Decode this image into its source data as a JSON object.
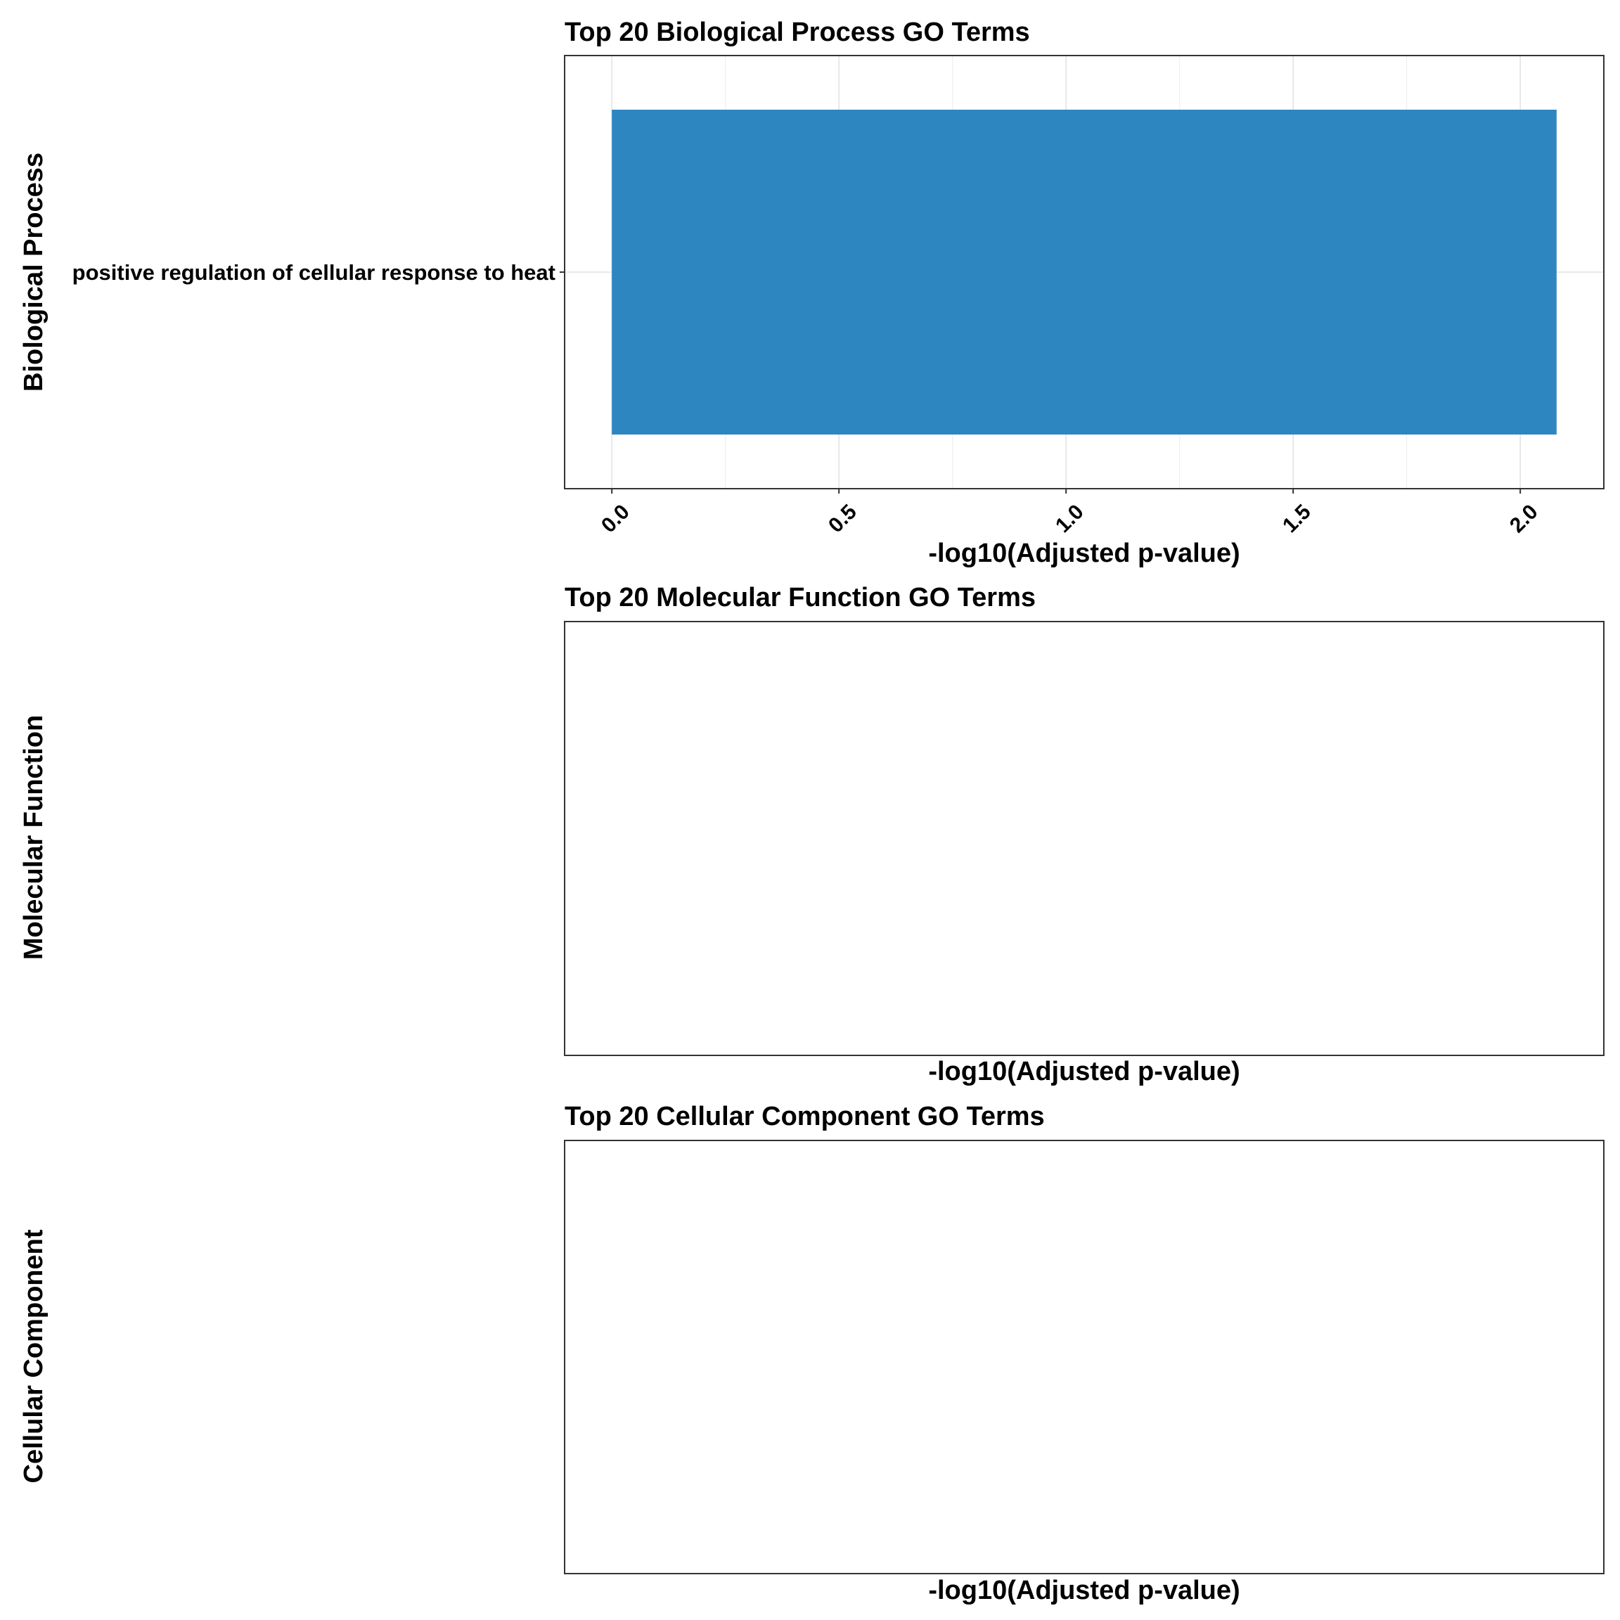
{
  "chart_data": [
    {
      "type": "bar",
      "orientation": "horizontal",
      "title": "Top 20 Biological Process GO Terms",
      "xlabel": "-log10(Adjusted p-value)",
      "ylabel": "Biological Process",
      "categories": [
        "positive regulation of cellular response to heat"
      ],
      "values": [
        2.08
      ],
      "xlim": [
        -0.104,
        2.184
      ],
      "x_ticks": [
        "0.0",
        "0.5",
        "1.0",
        "1.5",
        "2.0"
      ],
      "bar_color": "#2E86C1",
      "grid": true
    },
    {
      "type": "bar",
      "orientation": "horizontal",
      "title": "Top 20 Molecular Function GO Terms",
      "xlabel": "-log10(Adjusted p-value)",
      "ylabel": "Molecular Function",
      "categories": [],
      "values": [],
      "grid": false
    },
    {
      "type": "bar",
      "orientation": "horizontal",
      "title": "Top 20 Cellular Component GO Terms",
      "xlabel": "-log10(Adjusted p-value)",
      "ylabel": "Cellular Component",
      "categories": [],
      "values": [],
      "grid": false
    }
  ]
}
